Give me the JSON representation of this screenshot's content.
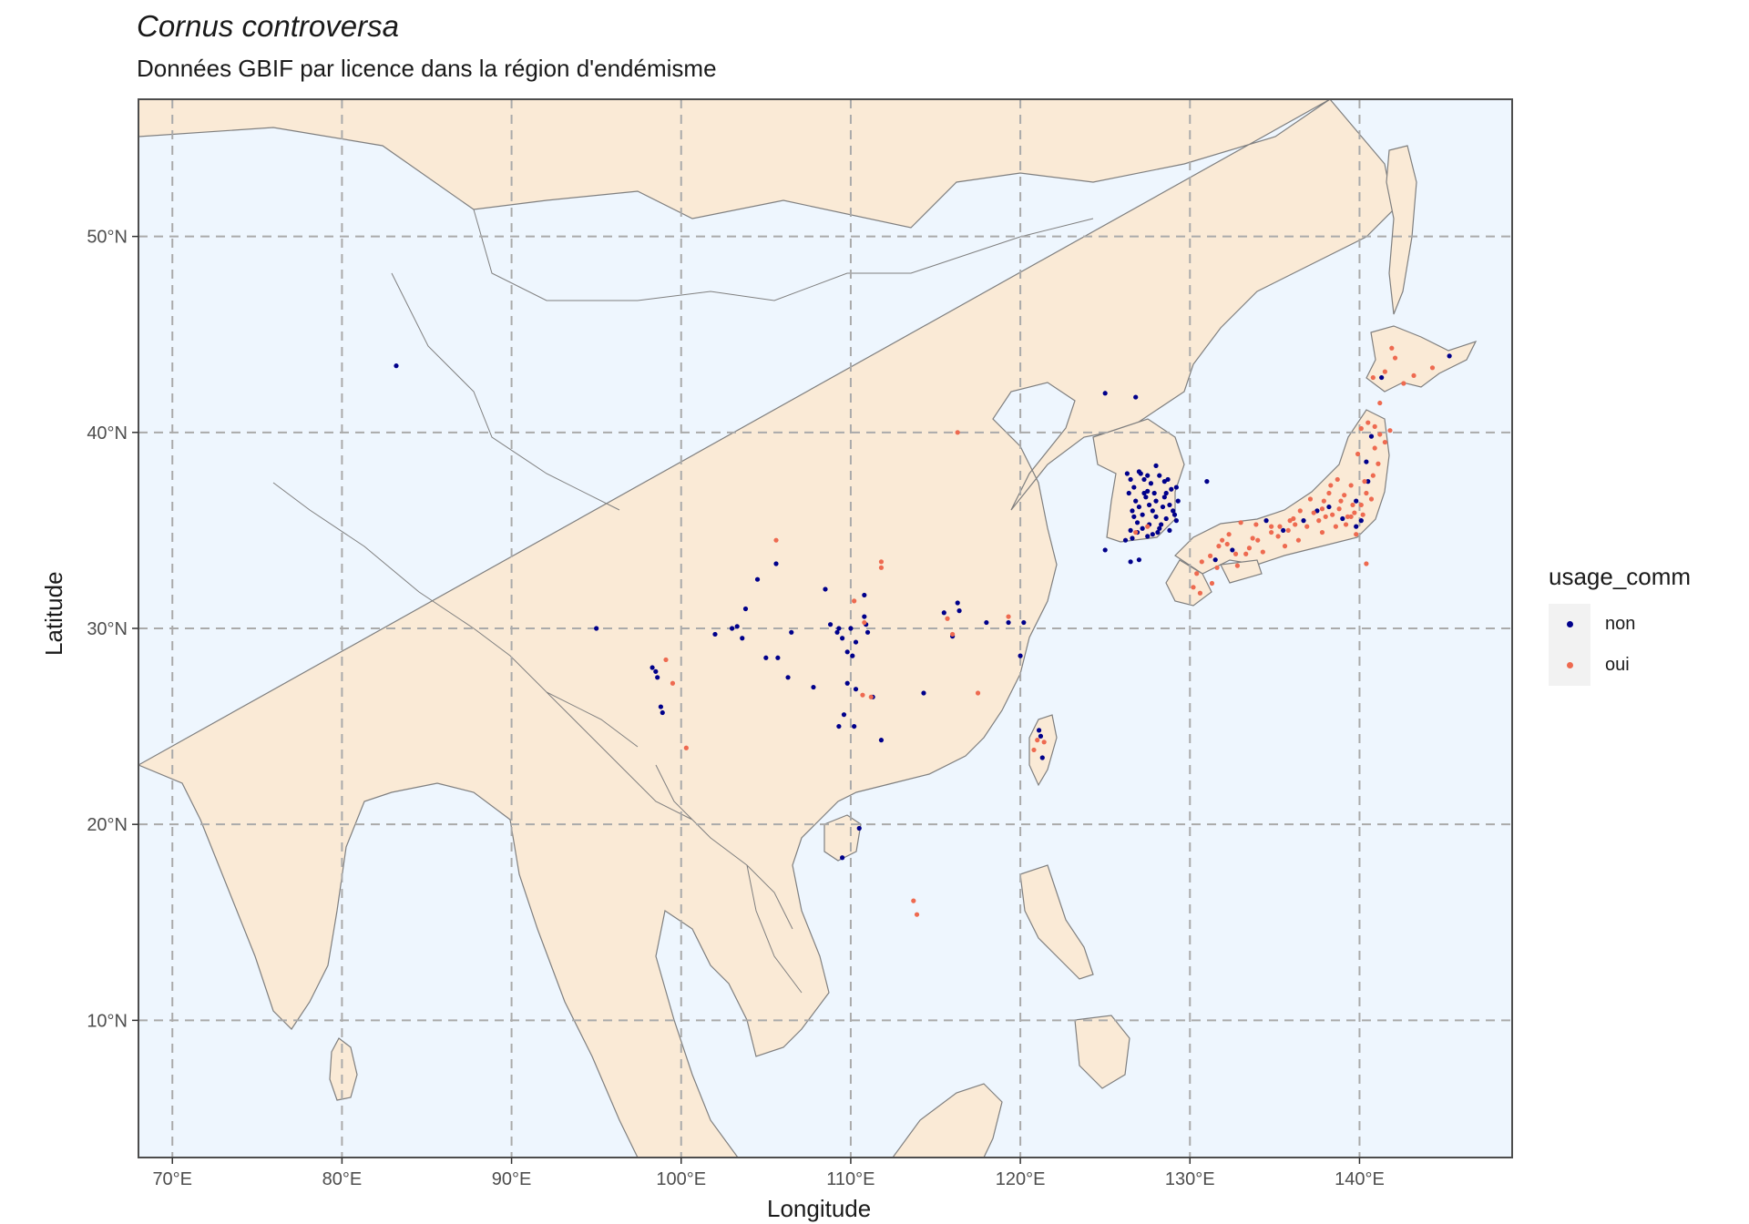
{
  "title": "Cornus controversa",
  "subtitle": "Données GBIF par licence dans la région d'endémisme",
  "axes": {
    "xlabel": "Longitude",
    "ylabel": "Latitude",
    "x_ticks": [
      "70°E",
      "80°E",
      "90°E",
      "100°E",
      "110°E",
      "120°E",
      "130°E",
      "140°E"
    ],
    "y_ticks": [
      "10°N",
      "20°N",
      "30°N",
      "40°N",
      "50°N"
    ]
  },
  "legend": {
    "title": "usage_comm",
    "items": [
      {
        "label": "non",
        "color": "#00008b"
      },
      {
        "label": "oui",
        "color": "#ee6a50"
      }
    ]
  },
  "colors": {
    "ocean": "#eef6fe",
    "land": "#faead6",
    "border": "#7f7f7f",
    "grid": "#aaaaaa"
  },
  "chart_data": {
    "type": "scatter",
    "xlim": [
      68,
      149
    ],
    "ylim": [
      3,
      57
    ],
    "series": [
      {
        "name": "non",
        "points": [
          [
            83.2,
            43.4
          ],
          [
            95,
            30
          ],
          [
            98.3,
            28
          ],
          [
            98.5,
            27.8
          ],
          [
            98.6,
            27.5
          ],
          [
            98.8,
            26
          ],
          [
            98.9,
            25.7
          ],
          [
            102,
            29.7
          ],
          [
            103,
            30
          ],
          [
            103.3,
            30.1
          ],
          [
            103.6,
            29.5
          ],
          [
            103.8,
            31
          ],
          [
            104.5,
            32.5
          ],
          [
            105,
            28.5
          ],
          [
            105.6,
            33.3
          ],
          [
            105.7,
            28.5
          ],
          [
            106.3,
            27.5
          ],
          [
            106.5,
            29.8
          ],
          [
            107.8,
            27
          ],
          [
            108.5,
            32
          ],
          [
            108.8,
            30.2
          ],
          [
            109.2,
            29.8
          ],
          [
            109.3,
            30
          ],
          [
            109.5,
            29.5
          ],
          [
            109.3,
            25
          ],
          [
            109.6,
            25.6
          ],
          [
            109.8,
            28.8
          ],
          [
            109.8,
            27.2
          ],
          [
            110,
            30
          ],
          [
            110.1,
            28.6
          ],
          [
            110.2,
            25
          ],
          [
            110.3,
            26.9
          ],
          [
            110.3,
            29.3
          ],
          [
            110.8,
            31.7
          ],
          [
            110.8,
            30.6
          ],
          [
            110.9,
            30.2
          ],
          [
            111,
            29.8
          ],
          [
            111.3,
            26.5
          ],
          [
            111.8,
            24.3
          ],
          [
            114.3,
            26.7
          ],
          [
            115.5,
            30.8
          ],
          [
            116,
            29.6
          ],
          [
            116.3,
            31.3
          ],
          [
            116.4,
            30.9
          ],
          [
            118,
            30.3
          ],
          [
            119.3,
            30.3
          ],
          [
            120,
            28.6
          ],
          [
            120.2,
            30.3
          ],
          [
            110.5,
            19.8
          ],
          [
            109.5,
            18.3
          ],
          [
            121.1,
            24.8
          ],
          [
            121.2,
            24.5
          ],
          [
            121.3,
            23.4
          ],
          [
            125,
            42
          ],
          [
            126.8,
            41.8
          ],
          [
            131,
            37.5
          ],
          [
            127,
            33.5
          ],
          [
            126.5,
            33.4
          ],
          [
            125,
            34
          ],
          [
            126.2,
            34.5
          ],
          [
            126.5,
            35
          ],
          [
            126.3,
            37.9
          ],
          [
            127,
            38
          ],
          [
            128,
            38.3
          ],
          [
            128.5,
            37.5
          ],
          [
            129.3,
            36.5
          ],
          [
            129.2,
            35.5
          ],
          [
            128.8,
            35
          ],
          [
            127.5,
            34.7
          ],
          [
            126.6,
            36
          ],
          [
            126.7,
            37.2
          ],
          [
            127.5,
            37
          ],
          [
            128,
            36.5
          ],
          [
            127.2,
            35.8
          ],
          [
            128.3,
            35.3
          ],
          [
            127.8,
            36
          ],
          [
            126.9,
            34.9
          ],
          [
            128.6,
            36.9
          ],
          [
            127.3,
            37.6
          ],
          [
            128.2,
            37.8
          ],
          [
            126.8,
            36.5
          ],
          [
            129,
            36
          ],
          [
            127.6,
            35.3
          ],
          [
            128.9,
            37.1
          ],
          [
            127,
            36.2
          ],
          [
            128.1,
            34.9
          ],
          [
            126.5,
            37.6
          ],
          [
            127.7,
            37.4
          ],
          [
            128.4,
            36.2
          ],
          [
            126.9,
            35.4
          ],
          [
            129.1,
            35.8
          ],
          [
            127.4,
            36.7
          ],
          [
            128.7,
            37.6
          ],
          [
            126.6,
            34.6
          ],
          [
            128,
            35.7
          ],
          [
            127.9,
            36.9
          ],
          [
            127.1,
            37.9
          ],
          [
            128.5,
            36.7
          ],
          [
            127.2,
            35.1
          ],
          [
            126.7,
            35.7
          ],
          [
            128.8,
            36.3
          ],
          [
            127.6,
            36.3
          ],
          [
            129.2,
            37.2
          ],
          [
            126.4,
            36.9
          ],
          [
            128.2,
            35.1
          ],
          [
            127.5,
            37.8
          ],
          [
            128.6,
            35.6
          ],
          [
            127.8,
            34.8
          ],
          [
            127.3,
            36.9
          ],
          [
            132.5,
            34
          ],
          [
            131.5,
            33.5
          ],
          [
            135.5,
            35
          ],
          [
            136.7,
            35.5
          ],
          [
            137.5,
            36
          ],
          [
            138.2,
            36.2
          ],
          [
            139,
            35.6
          ],
          [
            139.8,
            35.2
          ],
          [
            140.5,
            37.5
          ],
          [
            140.7,
            39.8
          ],
          [
            140.4,
            38.5
          ],
          [
            139.8,
            36.5
          ],
          [
            140.1,
            35.5
          ],
          [
            145.3,
            43.9
          ],
          [
            141.3,
            42.8
          ],
          [
            134.5,
            35.5
          ]
        ]
      },
      {
        "name": "oui",
        "points": [
          [
            99.1,
            28.4
          ],
          [
            99.5,
            27.2
          ],
          [
            100.3,
            23.9
          ],
          [
            105.6,
            34.5
          ],
          [
            110.2,
            31.4
          ],
          [
            110.7,
            26.6
          ],
          [
            110.8,
            30.3
          ],
          [
            111.2,
            26.5
          ],
          [
            111.8,
            33.4
          ],
          [
            111.8,
            33.1
          ],
          [
            115.7,
            30.5
          ],
          [
            116,
            29.7
          ],
          [
            116.3,
            40
          ],
          [
            117.5,
            26.7
          ],
          [
            119.3,
            30.6
          ],
          [
            121,
            24.3
          ],
          [
            121.4,
            24.2
          ],
          [
            120.8,
            23.8
          ],
          [
            113.9,
            15.4
          ],
          [
            113.7,
            16.1
          ],
          [
            126.8,
            34.9
          ],
          [
            127.5,
            35.2
          ],
          [
            132.8,
            33.2
          ],
          [
            133.3,
            33.8
          ],
          [
            134,
            34.5
          ],
          [
            132.2,
            34.3
          ],
          [
            135.2,
            34.7
          ],
          [
            135.8,
            35
          ],
          [
            136.2,
            35.3
          ],
          [
            136.9,
            35.2
          ],
          [
            137.3,
            35.9
          ],
          [
            137.8,
            36.1
          ],
          [
            138.4,
            35.8
          ],
          [
            138.9,
            36.5
          ],
          [
            139.3,
            35.7
          ],
          [
            139.7,
            35.9
          ],
          [
            140.1,
            36.3
          ],
          [
            140.4,
            36.9
          ],
          [
            140.8,
            37.8
          ],
          [
            141.1,
            38.4
          ],
          [
            140.9,
            39.2
          ],
          [
            141.2,
            39.9
          ],
          [
            140.5,
            40.5
          ],
          [
            140.1,
            40.2
          ],
          [
            139.9,
            38.9
          ],
          [
            139.5,
            37.3
          ],
          [
            138.7,
            37.6
          ],
          [
            138.2,
            36.9
          ],
          [
            137.1,
            36.6
          ],
          [
            136.5,
            36
          ],
          [
            135.9,
            35.5
          ],
          [
            134.8,
            35.2
          ],
          [
            133.9,
            35.3
          ],
          [
            133,
            35.4
          ],
          [
            132.3,
            34.8
          ],
          [
            131.7,
            34.2
          ],
          [
            131.2,
            33.7
          ],
          [
            130.7,
            33.4
          ],
          [
            130.4,
            32.8
          ],
          [
            130.2,
            32.1
          ],
          [
            130.6,
            31.8
          ],
          [
            131.3,
            32.3
          ],
          [
            131.6,
            33.1
          ],
          [
            132.7,
            33.8
          ],
          [
            133.5,
            34.1
          ],
          [
            134.3,
            33.9
          ],
          [
            135.6,
            34.2
          ],
          [
            136.4,
            34.5
          ],
          [
            137.8,
            34.9
          ],
          [
            138.6,
            35.2
          ],
          [
            139.2,
            35.3
          ],
          [
            139.5,
            35.7
          ],
          [
            140.2,
            35.8
          ],
          [
            140.7,
            36.6
          ],
          [
            139.1,
            36.8
          ],
          [
            138.3,
            37.3
          ],
          [
            137.9,
            36.5
          ],
          [
            137.6,
            35.5
          ],
          [
            139.8,
            34.8
          ],
          [
            140.9,
            40.3
          ],
          [
            141.5,
            39.5
          ],
          [
            141.8,
            40.1
          ],
          [
            140.4,
            33.3
          ],
          [
            141.5,
            43.1
          ],
          [
            142.1,
            43.8
          ],
          [
            143.2,
            42.9
          ],
          [
            144.3,
            43.3
          ],
          [
            142.6,
            42.5
          ],
          [
            140.8,
            42.8
          ],
          [
            141.9,
            44.3
          ],
          [
            141.2,
            41.5
          ],
          [
            134.8,
            34.9
          ],
          [
            135.3,
            35.2
          ],
          [
            136.1,
            35.6
          ],
          [
            138,
            35.7
          ],
          [
            139.6,
            36.3
          ],
          [
            140.3,
            37.5
          ],
          [
            138.8,
            36.1
          ],
          [
            131.9,
            34.5
          ],
          [
            133.7,
            34.6
          ]
        ]
      }
    ]
  }
}
